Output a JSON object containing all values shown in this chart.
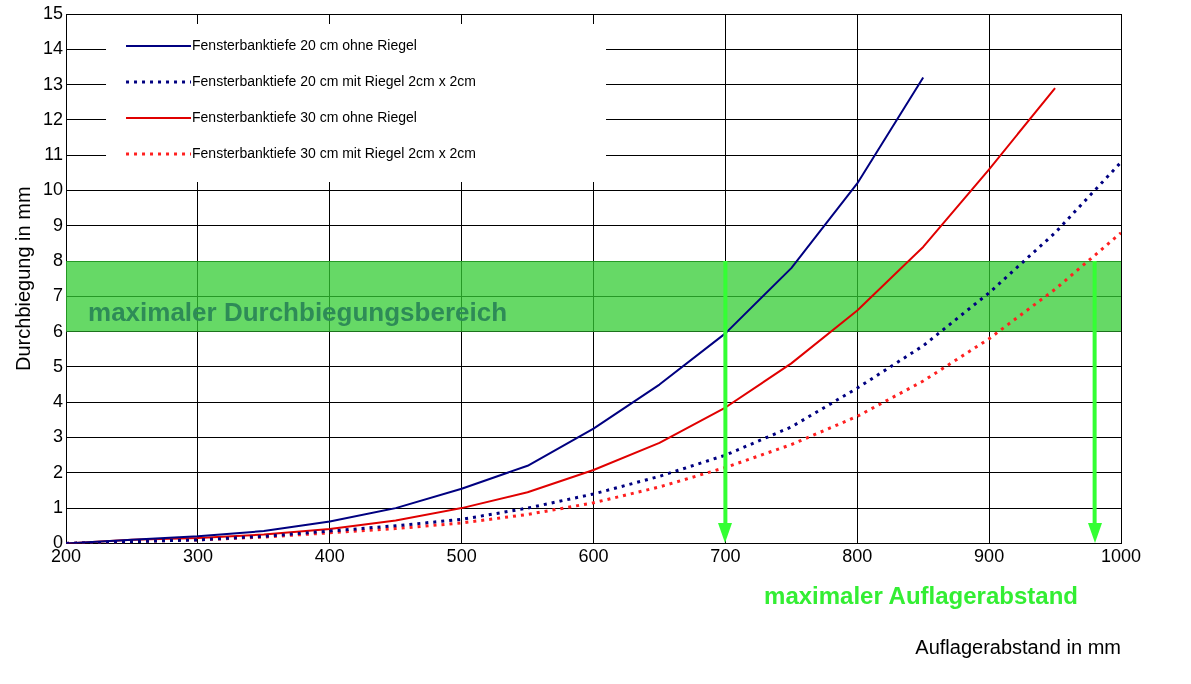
{
  "chart_data": {
    "type": "line",
    "xlabel": "Auflagerabstand in mm",
    "ylabel": "Durchbiegung in mm",
    "x": [
      200,
      250,
      300,
      350,
      400,
      450,
      500,
      550,
      600,
      650,
      700,
      750,
      800,
      850,
      900,
      950,
      1000
    ],
    "series": [
      {
        "name": "Fensterbanktiefe 20 cm ohne Riegel",
        "color": "#000080",
        "line_style": "solid",
        "values": [
          0,
          0.1,
          0.2,
          0.35,
          0.62,
          1.0,
          1.55,
          2.2,
          3.25,
          4.5,
          5.95,
          7.8,
          10.2,
          13.2,
          null,
          null,
          null
        ]
      },
      {
        "name": "Fensterbanktiefe 20 cm mit Riegel 2cm x 2cm",
        "color": "#000080",
        "line_style": "dotted",
        "values": [
          0,
          0.05,
          0.1,
          0.2,
          0.35,
          0.5,
          0.68,
          1.0,
          1.4,
          1.9,
          2.5,
          3.3,
          4.4,
          5.6,
          7.1,
          8.8,
          10.8
        ]
      },
      {
        "name": "Fensterbanktiefe 30 cm ohne Riegel",
        "color": "#e00000",
        "line_style": "solid",
        "values": [
          0,
          0.1,
          0.15,
          0.25,
          0.41,
          0.65,
          1.0,
          1.45,
          2.08,
          2.85,
          3.85,
          5.1,
          6.6,
          8.4,
          10.6,
          12.9,
          null
        ]
      },
      {
        "name": "Fensterbanktiefe 30 cm mit Riegel 2cm x 2cm",
        "color": "#ff2020",
        "line_style": "dotted",
        "values": [
          0,
          0.05,
          0.1,
          0.18,
          0.3,
          0.42,
          0.58,
          0.82,
          1.15,
          1.6,
          2.15,
          2.8,
          3.6,
          4.6,
          5.8,
          7.2,
          8.8
        ]
      }
    ],
    "xlim": [
      200,
      1000
    ],
    "xticks": [
      200,
      300,
      400,
      500,
      600,
      700,
      800,
      900,
      1000
    ],
    "ylim": [
      0,
      15
    ],
    "yticks": [
      0,
      1,
      2,
      3,
      4,
      5,
      6,
      7,
      8,
      9,
      10,
      11,
      12,
      13,
      14,
      15
    ],
    "grid": true,
    "legend": "top left",
    "marker": "none",
    "bands": [
      {
        "axis": "y",
        "from": 6,
        "to": 8,
        "label": "maximaler Durchbiegungsbereich",
        "color": "#33cc33"
      }
    ],
    "ref_lines": [
      {
        "axis": "x",
        "value": 700,
        "color": "#33ff33"
      },
      {
        "axis": "x",
        "value": 980,
        "color": "#33ff33"
      }
    ],
    "annotations": [
      "maximaler Auflagerabstand"
    ]
  }
}
